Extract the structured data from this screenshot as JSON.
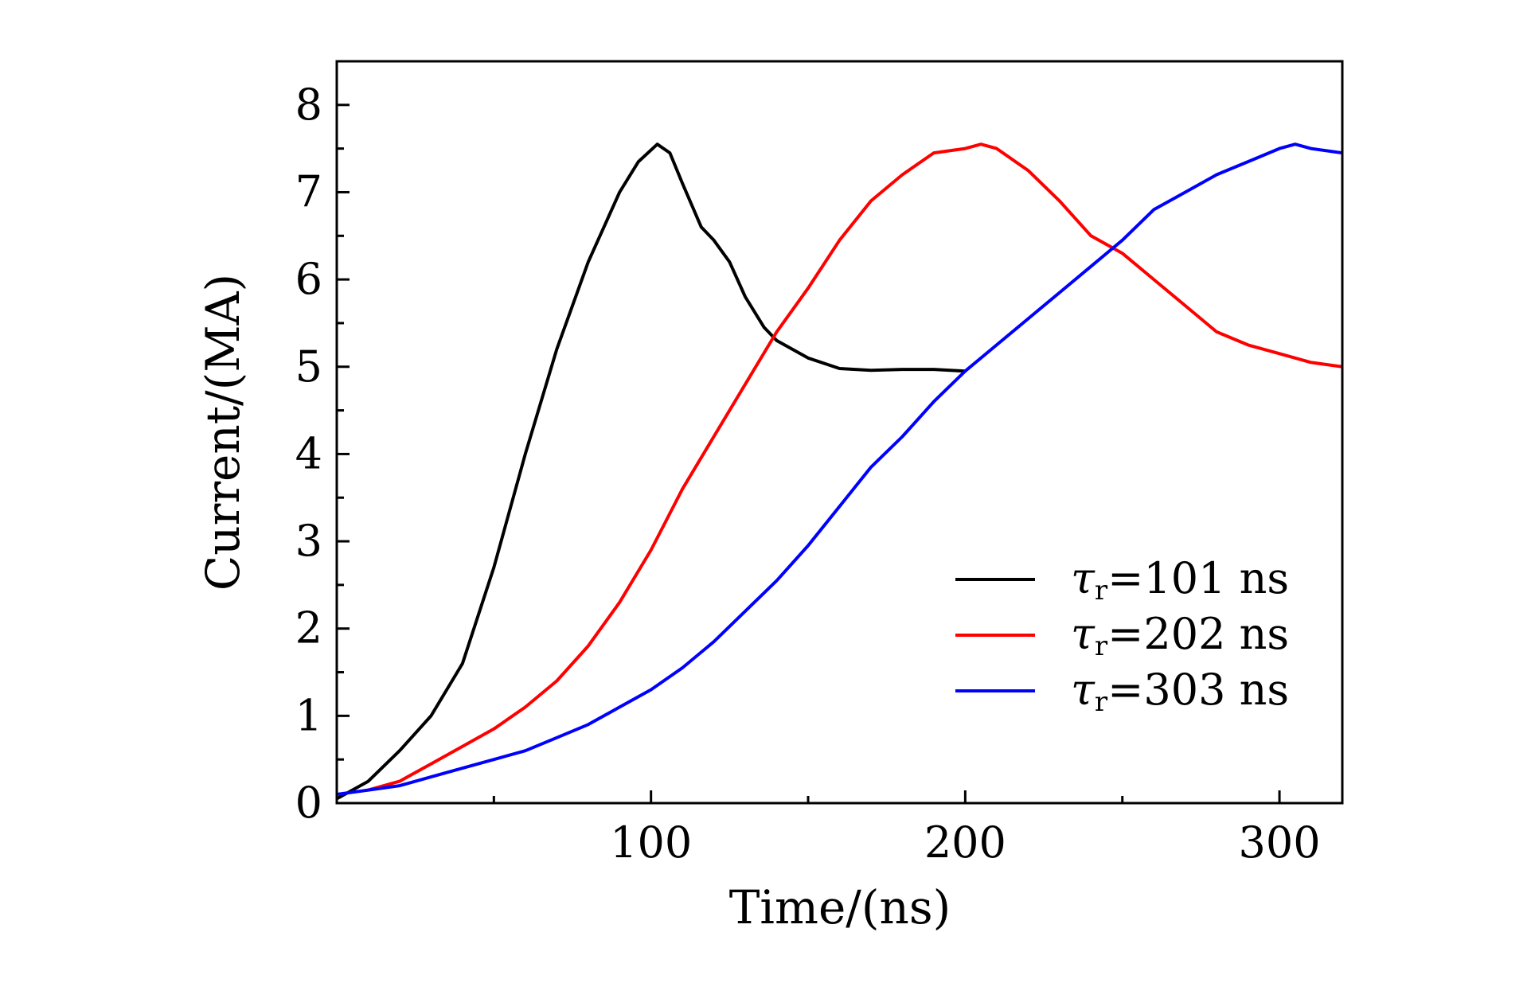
{
  "chart_data": {
    "type": "line",
    "title": "",
    "xlabel": "Time/(ns)",
    "ylabel": "Current/(MA)",
    "xlim": [
      0,
      320
    ],
    "ylim": [
      0,
      8.5
    ],
    "x_ticks": [
      100,
      200,
      300
    ],
    "x_tick_labels": [
      "100",
      "200",
      "300"
    ],
    "x_minor_ticks": [
      50,
      150,
      250
    ],
    "y_ticks": [
      0,
      1,
      2,
      3,
      4,
      5,
      6,
      7,
      8
    ],
    "y_tick_labels": [
      "0",
      "1",
      "2",
      "3",
      "4",
      "5",
      "6",
      "7",
      "8"
    ],
    "grid": false,
    "legend_position": "lower-right",
    "series": [
      {
        "name": "τr=101 ns",
        "legend_symbol": "τ",
        "legend_subscript": "r",
        "legend_value": "=101 ns",
        "color": "#000000",
        "x": [
          0,
          10,
          20,
          30,
          40,
          50,
          60,
          70,
          80,
          90,
          96,
          102,
          106,
          110,
          116,
          120,
          125,
          130,
          136,
          140,
          150,
          160,
          170,
          180,
          190,
          200
        ],
        "y": [
          0.05,
          0.25,
          0.6,
          1.0,
          1.6,
          2.7,
          4.0,
          5.2,
          6.2,
          7.0,
          7.35,
          7.55,
          7.45,
          7.1,
          6.6,
          6.45,
          6.2,
          5.8,
          5.45,
          5.3,
          5.1,
          4.98,
          4.96,
          4.97,
          4.97,
          4.95
        ]
      },
      {
        "name": "τr=202 ns",
        "legend_symbol": "τ",
        "legend_subscript": "r",
        "legend_value": "=202 ns",
        "color": "#ff0000",
        "x": [
          10,
          20,
          30,
          40,
          50,
          60,
          70,
          80,
          90,
          100,
          110,
          120,
          130,
          140,
          150,
          160,
          170,
          180,
          190,
          200,
          205,
          210,
          220,
          230,
          240,
          250,
          260,
          270,
          280,
          290,
          300,
          310,
          320
        ],
        "y": [
          0.15,
          0.25,
          0.45,
          0.65,
          0.85,
          1.1,
          1.4,
          1.8,
          2.3,
          2.9,
          3.6,
          4.2,
          4.8,
          5.4,
          5.9,
          6.45,
          6.9,
          7.2,
          7.45,
          7.5,
          7.55,
          7.5,
          7.25,
          6.9,
          6.5,
          6.3,
          6.0,
          5.7,
          5.4,
          5.25,
          5.15,
          5.05,
          5.0
        ]
      },
      {
        "name": "τr=303 ns",
        "legend_symbol": "τ",
        "legend_subscript": "r",
        "legend_value": "=303 ns",
        "color": "#0000ff",
        "x": [
          0,
          10,
          20,
          30,
          40,
          50,
          60,
          70,
          80,
          90,
          100,
          110,
          120,
          130,
          140,
          150,
          160,
          170,
          180,
          190,
          200,
          210,
          220,
          230,
          240,
          250,
          260,
          270,
          280,
          290,
          300,
          305,
          310,
          320
        ],
        "y": [
          0.1,
          0.15,
          0.2,
          0.3,
          0.4,
          0.5,
          0.6,
          0.75,
          0.9,
          1.1,
          1.3,
          1.55,
          1.85,
          2.2,
          2.55,
          2.95,
          3.4,
          3.85,
          4.2,
          4.6,
          4.95,
          5.25,
          5.55,
          5.85,
          6.15,
          6.45,
          6.8,
          7.0,
          7.2,
          7.35,
          7.5,
          7.55,
          7.5,
          7.45
        ]
      }
    ]
  }
}
